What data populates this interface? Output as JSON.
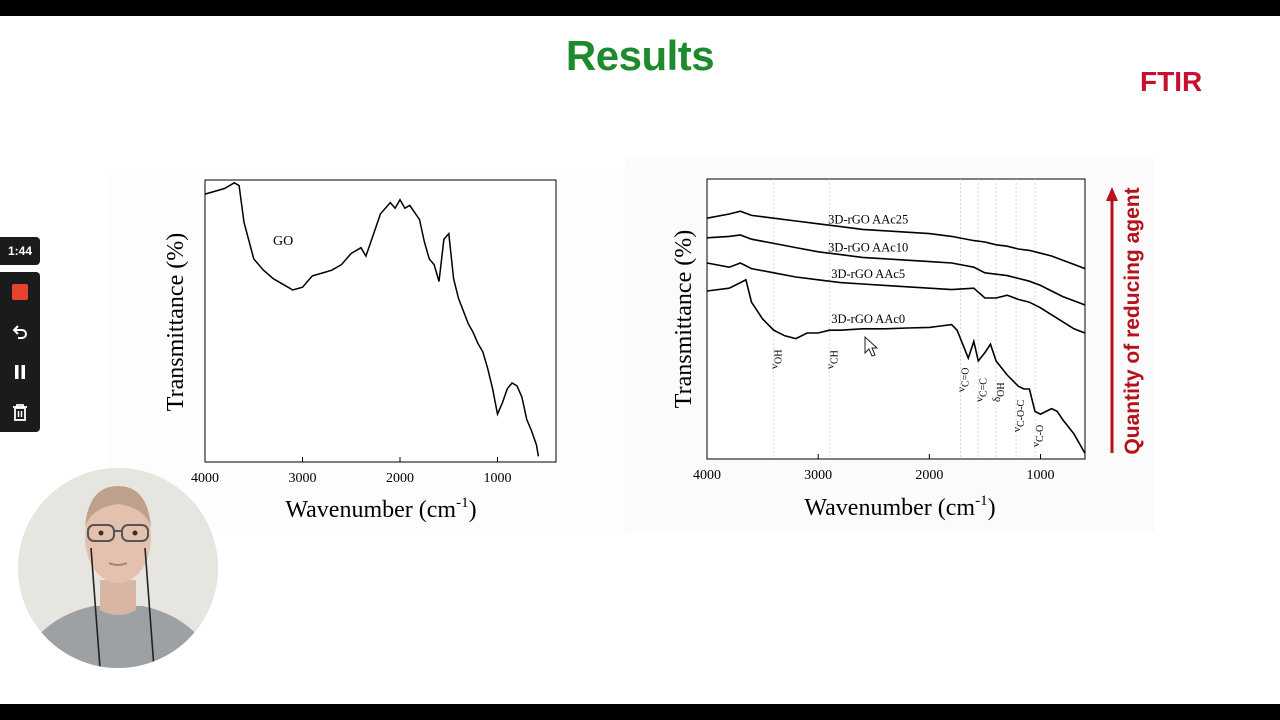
{
  "slide": {
    "title": "Results",
    "subtitle_tag": "FTIR",
    "colors": {
      "title": "#1e8a2e",
      "ftir": "#c8102e",
      "arrow": "#b5121b"
    }
  },
  "chart_data": [
    {
      "type": "line",
      "title": "",
      "xlabel": "Wavenumber (cm",
      "xlabel_sup": "-1",
      "xlabel_end": ")",
      "ylabel": "Transmittance (%)",
      "xlim": [
        4000,
        400
      ],
      "x_ticks": [
        "4000",
        "3000",
        "2000",
        "1000"
      ],
      "x_tick_values": [
        4000,
        3000,
        2000,
        1000
      ],
      "series": [
        {
          "name": "GO",
          "x": [
            4000,
            3800,
            3700,
            3650,
            3600,
            3500,
            3400,
            3300,
            3200,
            3100,
            3000,
            2900,
            2800,
            2700,
            2600,
            2500,
            2400,
            2350,
            2300,
            2200,
            2100,
            2050,
            2000,
            1950,
            1900,
            1800,
            1750,
            1700,
            1650,
            1600,
            1550,
            1500,
            1450,
            1400,
            1300,
            1250,
            1200,
            1150,
            1100,
            1050,
            1000,
            950,
            900,
            850,
            800,
            750,
            700,
            650,
            600,
            580
          ],
          "y": [
            95,
            97,
            99,
            98,
            85,
            72,
            68,
            65,
            63,
            61,
            62,
            66,
            67,
            68,
            70,
            74,
            76,
            73,
            78,
            88,
            92,
            90,
            93,
            90,
            91,
            86,
            78,
            72,
            70,
            64,
            79,
            81,
            65,
            58,
            49,
            46,
            42,
            39,
            33,
            26,
            17,
            21,
            26,
            28,
            27,
            23,
            15,
            11,
            6,
            2
          ]
        }
      ]
    },
    {
      "type": "line",
      "title": "",
      "xlabel": "Wavenumber (cm",
      "xlabel_sup": "-1",
      "xlabel_end": ")",
      "ylabel": "Transmittance (%)",
      "xlim": [
        4000,
        600
      ],
      "x_ticks": [
        "4000",
        "3000",
        "2000",
        "1000"
      ],
      "x_tick_values": [
        4000,
        3000,
        2000,
        1000
      ],
      "series": [
        {
          "name": "3D-rGO AAc25",
          "x": [
            4000,
            3800,
            3700,
            3600,
            3400,
            3200,
            3000,
            2800,
            2600,
            2400,
            2200,
            2000,
            1800,
            1600,
            1500,
            1400,
            1300,
            1200,
            1100,
            1000,
            900,
            800,
            700,
            600
          ],
          "y": [
            86,
            87.5,
            88.5,
            87,
            86,
            85,
            84,
            83,
            82,
            81.5,
            81,
            80.5,
            79.5,
            78,
            77.5,
            76.5,
            76,
            75,
            74.5,
            73.5,
            72.5,
            71,
            69.5,
            68
          ]
        },
        {
          "name": "3D-rGO AAc10",
          "x": [
            4000,
            3800,
            3700,
            3600,
            3400,
            3200,
            3000,
            2800,
            2600,
            2400,
            2200,
            2000,
            1800,
            1600,
            1500,
            1400,
            1300,
            1200,
            1100,
            1000,
            900,
            800,
            700,
            600
          ],
          "y": [
            79,
            79.5,
            80,
            78.5,
            77,
            75.5,
            74,
            73,
            72,
            71.5,
            71,
            70.5,
            70,
            68.5,
            66.5,
            66,
            65.5,
            64.5,
            63.5,
            62,
            60,
            58,
            56.5,
            55
          ]
        },
        {
          "name": "3D-rGO AAc5",
          "x": [
            4000,
            3800,
            3700,
            3600,
            3400,
            3200,
            3000,
            2800,
            2600,
            2400,
            2200,
            2000,
            1800,
            1600,
            1500,
            1400,
            1300,
            1200,
            1100,
            1000,
            900,
            800,
            700,
            600
          ],
          "y": [
            70,
            68.5,
            70,
            68,
            66.5,
            65,
            64,
            63,
            62.5,
            62,
            61.5,
            61,
            60.5,
            61,
            57.5,
            57.5,
            58.5,
            57,
            56,
            54,
            51.5,
            49,
            46.5,
            45
          ]
        },
        {
          "name": "3D-rGO AAc0",
          "x": [
            4000,
            3800,
            3700,
            3650,
            3600,
            3500,
            3400,
            3300,
            3200,
            3100,
            3000,
            2900,
            2800,
            2600,
            2400,
            2200,
            2000,
            1900,
            1800,
            1750,
            1700,
            1650,
            1600,
            1560,
            1500,
            1450,
            1400,
            1300,
            1250,
            1200,
            1150,
            1100,
            1050,
            1000,
            950,
            900,
            850,
            800,
            700,
            600
          ],
          "y": [
            60,
            61,
            63,
            64,
            56,
            50,
            46,
            44,
            43,
            45,
            45,
            46,
            46,
            46.5,
            46.5,
            46.8,
            47,
            47.5,
            48,
            46,
            41,
            36,
            42,
            35,
            38,
            41,
            35,
            30,
            28,
            26,
            25,
            25,
            17,
            16,
            17,
            18,
            17,
            14,
            9,
            2
          ]
        }
      ],
      "band_labels": [
        {
          "base": "ν",
          "sub": "OH",
          "wn": 3400
        },
        {
          "base": "ν",
          "sub": "CH",
          "wn": 2900
        },
        {
          "base": "ν",
          "sub": "C=O",
          "wn": 1720
        },
        {
          "base": "ν",
          "sub": "C=C",
          "wn": 1560
        },
        {
          "base": "δ",
          "sub": "OH",
          "wn": 1400
        },
        {
          "base": "ν",
          "sub": "C-O-C",
          "wn": 1220
        },
        {
          "base": "ν",
          "sub": "C-O",
          "wn": 1050
        }
      ],
      "side_label": "Quantity of reducing agent"
    }
  ],
  "recorder": {
    "timer": "1:44",
    "buttons": [
      {
        "name": "stop-button",
        "icon": "stop-icon"
      },
      {
        "name": "undo-button",
        "icon": "undo-icon"
      },
      {
        "name": "pause-button",
        "icon": "pause-icon"
      },
      {
        "name": "delete-button",
        "icon": "trash-icon"
      }
    ],
    "stop_color": "#e8432e"
  }
}
